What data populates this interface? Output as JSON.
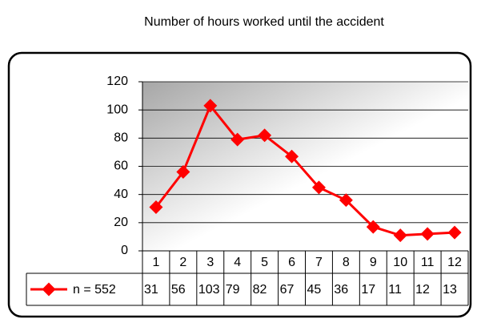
{
  "chart_data": {
    "type": "line",
    "title": "Number of hours worked until the accident",
    "categories": [
      "1",
      "2",
      "3",
      "4",
      "5",
      "6",
      "7",
      "8",
      "9",
      "10",
      "11",
      "12"
    ],
    "series": [
      {
        "name": "n = 552",
        "color": "#ff0000",
        "values": [
          31,
          56,
          103,
          79,
          82,
          67,
          45,
          36,
          17,
          11,
          12,
          13
        ]
      }
    ],
    "ylim": [
      0,
      120
    ],
    "yticks": [
      0,
      20,
      40,
      60,
      80,
      100,
      120
    ],
    "grid": true,
    "data_table": true
  }
}
